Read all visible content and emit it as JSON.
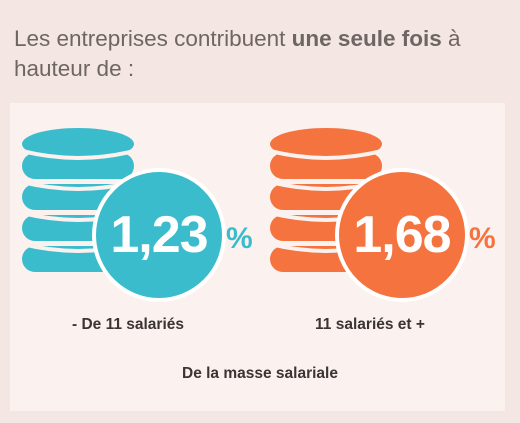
{
  "intro": {
    "before": "Les entreprises contribuent ",
    "emphasis": "une seule fois",
    "after": " à hauteur de :"
  },
  "colors": {
    "background": "#f4e6e3",
    "panel": "#fbf2f0",
    "teal": "#3bbccc",
    "orange": "#f4733e",
    "text": "#3a3433"
  },
  "contributions": [
    {
      "value": "1,23",
      "unit": "%",
      "label": "- De 11 salariés",
      "icon": "coin-stack-icon",
      "color": "#3bbccc"
    },
    {
      "value": "1,68",
      "unit": "%",
      "label": "11 salariés et +",
      "icon": "coin-stack-icon",
      "color": "#f4733e"
    }
  ],
  "footer": "De la masse salariale"
}
